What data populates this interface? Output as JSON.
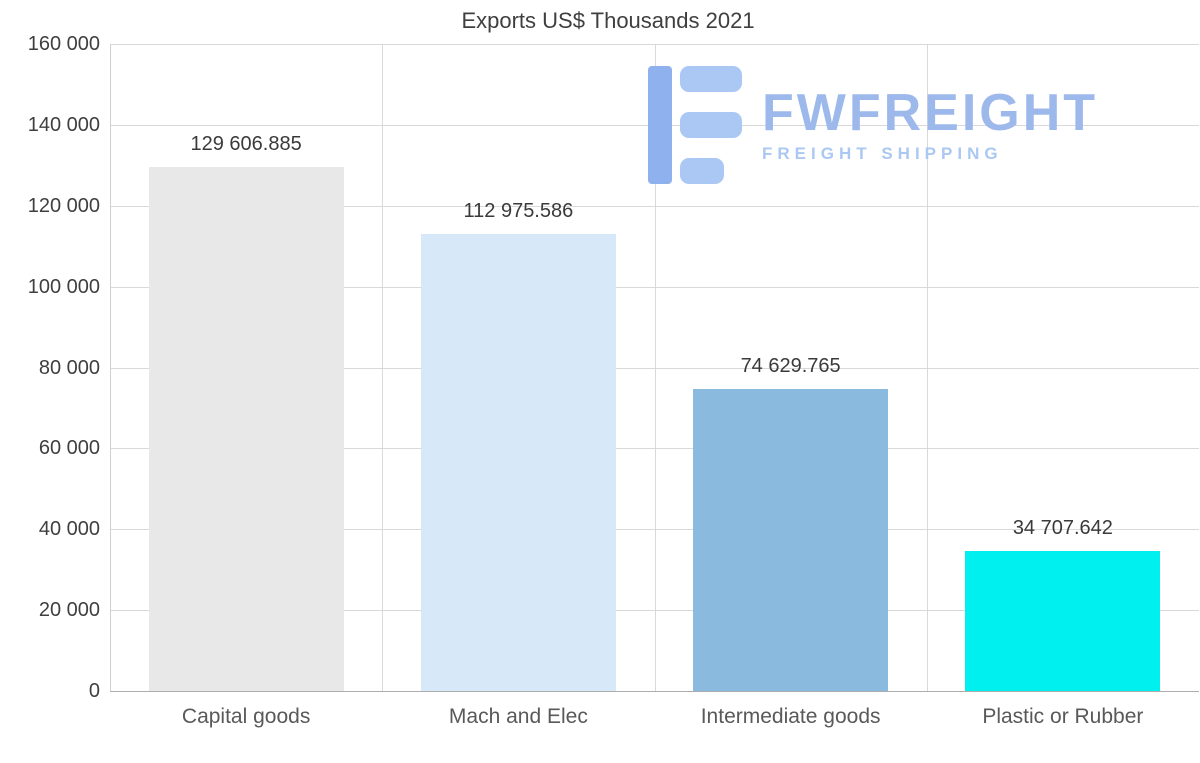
{
  "logo": {
    "name": "FWFREIGHT",
    "tagline": "FREIGHT SHIPPING",
    "name_color": "#9db9ec",
    "tagline_color": "#aac8f2",
    "icon_dark": "#8fb2ee",
    "icon_light": "#abc7f4"
  },
  "chart_data": {
    "type": "bar",
    "title": "Exports US$ Thousands 2021",
    "categories": [
      "Capital goods",
      "Mach and Elec",
      "Intermediate goods",
      "Plastic or Rubber"
    ],
    "values": [
      129606.885,
      112975.586,
      74629.765,
      34707.642
    ],
    "value_labels": [
      "129 606.885",
      "112 975.586",
      "74 629.765",
      "34 707.642"
    ],
    "bar_colors": [
      "#e8e8e8",
      "#d7e8f8",
      "#8abade",
      "#00efef"
    ],
    "xlabel": "",
    "ylabel": "",
    "ylim": [
      0,
      160000
    ],
    "ytick_step": 20000,
    "ytick_labels": [
      "0",
      "20 000",
      "40 000",
      "60 000",
      "80 000",
      "100 000",
      "120 000",
      "140 000",
      "160 000"
    ],
    "grid": true,
    "legend": false
  }
}
